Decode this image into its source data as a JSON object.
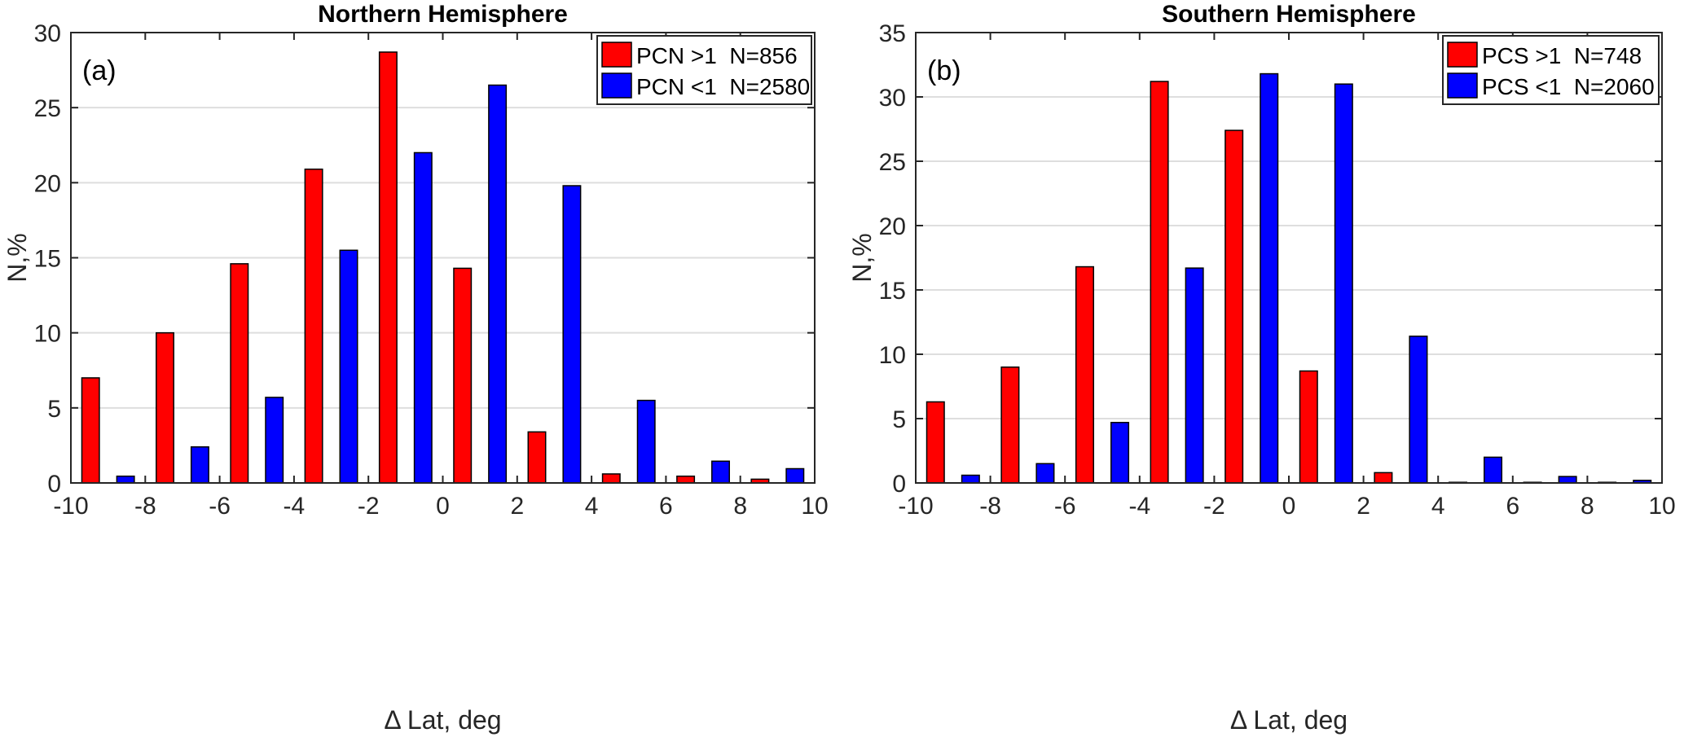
{
  "chart_data": [
    {
      "type": "bar",
      "title": "Northern Hemisphere",
      "panel_label": "(a)",
      "xlabel": "Δ Lat, deg",
      "ylabel": "N,%",
      "xlim": [
        -10,
        10
      ],
      "ylim": [
        0,
        30
      ],
      "xticks": [
        -10,
        -8,
        -6,
        -4,
        -2,
        0,
        2,
        4,
        6,
        8,
        10
      ],
      "yticks": [
        0,
        5,
        10,
        15,
        20,
        25,
        30
      ],
      "grid": "horizontal",
      "legend_position": "top-right",
      "x": [
        -9,
        -7,
        -5,
        -3,
        -1,
        1,
        3,
        5,
        7,
        9
      ],
      "series": [
        {
          "name": "PCN >1  N=856",
          "color": "#ff0000",
          "values": [
            7.0,
            10.0,
            14.6,
            20.9,
            28.7,
            14.3,
            3.4,
            0.6,
            0.45,
            0.25
          ]
        },
        {
          "name": "PCN <1  N=2580",
          "color": "#0000ff",
          "values": [
            0.45,
            2.4,
            5.7,
            15.5,
            22.0,
            26.5,
            19.8,
            5.5,
            1.45,
            0.95
          ]
        }
      ]
    },
    {
      "type": "bar",
      "title": "Southern Hemisphere",
      "panel_label": "(b)",
      "xlabel": "Δ Lat, deg",
      "ylabel": "N,%",
      "xlim": [
        -10,
        10
      ],
      "ylim": [
        0,
        35
      ],
      "xticks": [
        -10,
        -8,
        -6,
        -4,
        -2,
        0,
        2,
        4,
        6,
        8,
        10
      ],
      "yticks": [
        0,
        5,
        10,
        15,
        20,
        25,
        30,
        35
      ],
      "grid": "horizontal",
      "legend_position": "top-right",
      "x": [
        -9,
        -7,
        -5,
        -3,
        -1,
        1,
        3,
        5,
        7,
        9
      ],
      "series": [
        {
          "name": "PCS >1  N=748",
          "color": "#ff0000",
          "values": [
            6.3,
            9.0,
            16.8,
            31.2,
            27.4,
            8.7,
            0.8,
            0.05,
            0.05,
            0.05
          ]
        },
        {
          "name": "PCS <1  N=2060",
          "color": "#0000ff",
          "values": [
            0.6,
            1.5,
            4.7,
            16.7,
            31.8,
            31.0,
            11.4,
            2.0,
            0.5,
            0.2
          ]
        }
      ]
    }
  ]
}
